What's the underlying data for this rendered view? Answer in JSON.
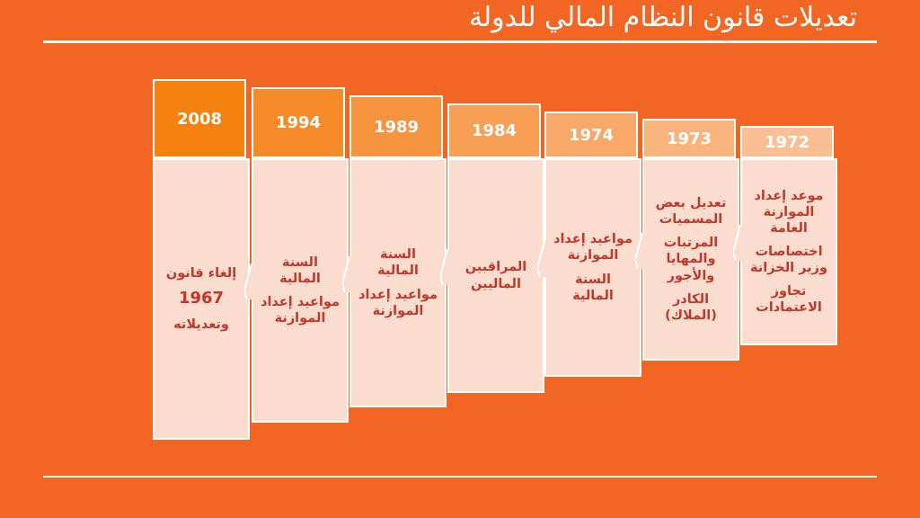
{
  "title": "تعديلات قانون النظام المالي للدولة",
  "columns": [
    {
      "year": "2008",
      "items": [
        "إلغاء قانون",
        "1967",
        "وتعديلاته"
      ]
    },
    {
      "year": "1994",
      "items": [
        "السنة المالية",
        "مواعيد إعداد الموازنة"
      ]
    },
    {
      "year": "1989",
      "items": [
        "السنة المالية",
        "مواعيد إعداد الموازنة"
      ]
    },
    {
      "year": "1984",
      "items": [
        "المراقبين الماليين"
      ]
    },
    {
      "year": "1974",
      "items": [
        "مواعيد إعداد الموازنة",
        "السنة المالية"
      ]
    },
    {
      "year": "1973",
      "items": [
        "تعديل بعض المسميات",
        "المرتبات والمهايا والأجور",
        "الكادر (الملاك)"
      ]
    },
    {
      "year": "1972",
      "items": [
        "موعد إعداد الموازنة العامة",
        "اختصاصات وزير الخزانة",
        "تجاوز الاعتمادات"
      ]
    }
  ],
  "colors": {
    "background": "#F26522",
    "body": "#FBDDD0",
    "text": "#C0392B",
    "line": "#FFFFFF",
    "heads": [
      "#F5820F",
      "#F68B2A",
      "#F79440",
      "#F79F55",
      "#F8A969",
      "#F9B47E",
      "#FABF93"
    ]
  }
}
